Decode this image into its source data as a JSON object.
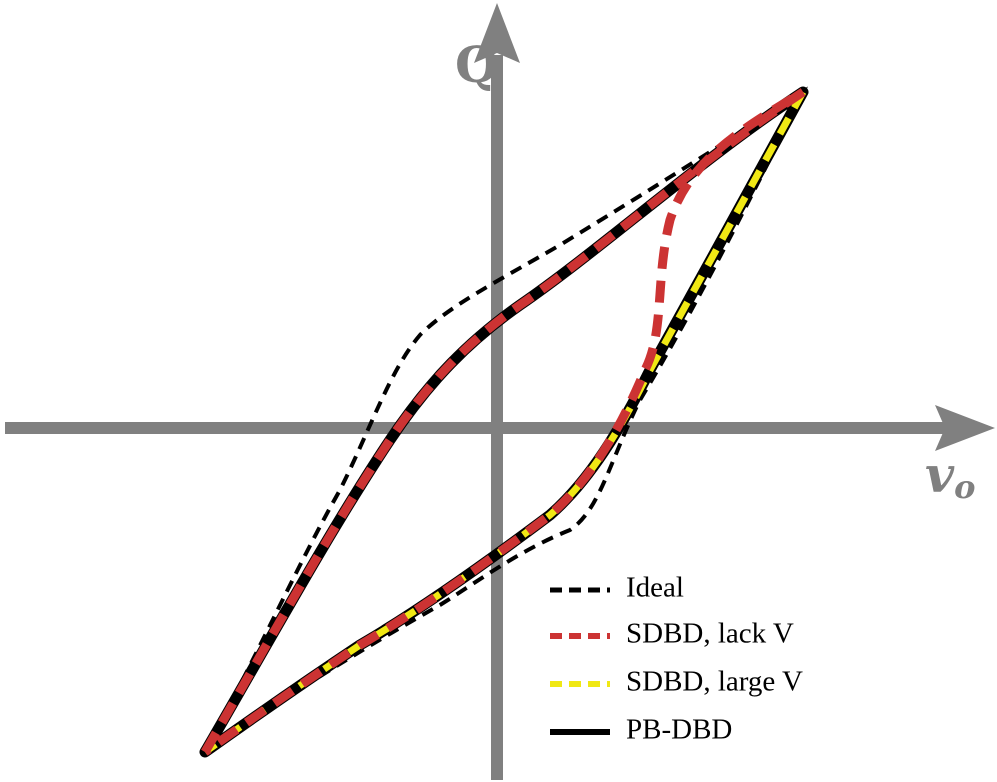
{
  "axes": {
    "y_label": "Q",
    "x_label": "v",
    "x_label_sub": "o"
  },
  "legend": [
    {
      "label": "Ideal"
    },
    {
      "label": "SDBD, lack V"
    },
    {
      "label": "SDBD, large V"
    },
    {
      "label": "PB-DBD"
    }
  ]
}
